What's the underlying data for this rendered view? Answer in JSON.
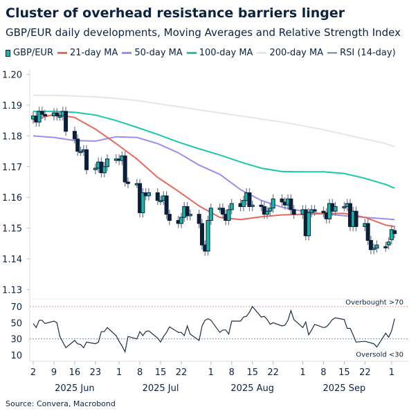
{
  "title": "Cluster of overhead resistance barriers linger",
  "subtitle": "GBP/EUR daily developments, Moving Averages and Relative Strength Index",
  "source": "Source: Convera, Macrobond",
  "colors": {
    "up": "#17b8a6",
    "down": "#0b1f3a",
    "ma21": "#e8685a",
    "ma50": "#9c8cf0",
    "ma100": "#19c9a9",
    "ma200": "#e6e6e6",
    "rsi": "#1e2a40",
    "overbought": "#f09090",
    "oversold": "#19c9a9"
  },
  "legend": [
    {
      "label": "GBP/EUR",
      "key": "candle",
      "icon": "candlestick-icon"
    },
    {
      "label": "21-day MA",
      "key": "ma21"
    },
    {
      "label": "50-day MA",
      "key": "ma50"
    },
    {
      "label": "100-day MA",
      "key": "ma100"
    },
    {
      "label": "200-day MA",
      "key": "ma200"
    },
    {
      "label": "RSI (14-day)",
      "key": "rsi"
    }
  ],
  "chart_data": [
    {
      "type": "candlestick",
      "ylim": [
        1.13,
        1.2
      ],
      "yticks": [
        "1.20",
        "1.19",
        "1.18",
        "1.17",
        "1.16",
        "1.15",
        "1.14",
        "1.13"
      ],
      "start": "2025-06-02",
      "ohlc_columns": [
        "open",
        "high",
        "low",
        "close"
      ],
      "closes": [
        1.1865,
        1.1845,
        1.188,
        1.187,
        1.1865,
        1.1875,
        1.1865,
        1.1865,
        1.188,
        1.1815,
        1.179,
        1.175,
        1.175,
        1.1755,
        1.169,
        1.1695,
        1.1715,
        1.168,
        1.17,
        1.1725,
        1.1725,
        1.172,
        1.1735,
        1.165,
        1.1645,
        1.1645,
        1.155,
        1.1615,
        1.1605,
        1.1615,
        1.159,
        1.159,
        1.1605,
        1.1545,
        1.1525,
        1.1515,
        1.1535,
        1.157,
        1.154,
        1.1545,
        1.1515,
        1.1445,
        1.1425,
        1.1525,
        1.1565,
        1.1565,
        1.1545,
        1.1525,
        1.156,
        1.158,
        1.157,
        1.159,
        1.1615,
        1.157,
        1.1575,
        1.157,
        1.1545,
        1.1555,
        1.1565,
        1.1595,
        1.1585,
        1.1575,
        1.1595,
        1.156,
        1.1545,
        1.156,
        1.1475,
        1.155,
        1.156,
        1.1555,
        1.155,
        1.153,
        1.158,
        1.1555,
        1.157,
        1.157,
        1.158,
        1.1505,
        1.1555,
        1.1505,
        1.1515,
        1.146,
        1.143,
        1.1435,
        1.1445,
        1.1438,
        1.1455,
        1.1495,
        1.1482
      ],
      "opens": [
        1.1855,
        1.1865,
        1.1845,
        1.188,
        1.187,
        1.1865,
        1.1875,
        1.1865,
        1.1865,
        1.188,
        1.1815,
        1.179,
        1.175,
        1.175,
        1.1755,
        1.169,
        1.1695,
        1.1715,
        1.168,
        1.17,
        1.1725,
        1.1725,
        1.172,
        1.1735,
        1.165,
        1.1645,
        1.1645,
        1.155,
        1.1615,
        1.1605,
        1.1615,
        1.159,
        1.159,
        1.1605,
        1.1545,
        1.1525,
        1.1515,
        1.1535,
        1.157,
        1.154,
        1.1545,
        1.1515,
        1.1445,
        1.1425,
        1.1525,
        1.1565,
        1.1565,
        1.1545,
        1.1525,
        1.156,
        1.158,
        1.157,
        1.159,
        1.1615,
        1.157,
        1.1575,
        1.157,
        1.1545,
        1.1555,
        1.1565,
        1.1595,
        1.1585,
        1.1575,
        1.1595,
        1.156,
        1.1545,
        1.156,
        1.1475,
        1.155,
        1.156,
        1.1555,
        1.155,
        1.153,
        1.158,
        1.1555,
        1.157,
        1.157,
        1.158,
        1.1505,
        1.1555,
        1.1505,
        1.1515,
        1.146,
        1.143,
        1.1435,
        1.144,
        1.1445,
        1.1462,
        1.1492
      ],
      "wick": 0.0015,
      "series": [
        {
          "name": "21-day MA",
          "values": [
            1.1852,
            1.187,
            1.186,
            1.1822,
            1.1775,
            1.1725,
            1.1665,
            1.162,
            1.1572,
            1.1535,
            1.1528,
            1.1537,
            1.1543,
            1.1545,
            1.1547,
            1.1548,
            1.1535,
            1.151,
            1.1505
          ]
        },
        {
          "name": "50-day MA",
          "values": [
            1.18,
            1.1795,
            1.1785,
            1.1783,
            1.1797,
            1.1795,
            1.1775,
            1.1745,
            1.1705,
            1.1675,
            1.1625,
            1.159,
            1.1568,
            1.1555,
            1.1547,
            1.154,
            1.1535,
            1.153,
            1.1528
          ]
        },
        {
          "name": "100-day MA",
          "values": [
            1.188,
            1.188,
            1.1877,
            1.1868,
            1.185,
            1.1828,
            1.1805,
            1.178,
            1.1758,
            1.1738,
            1.1715,
            1.1695,
            1.1684,
            1.1683,
            1.1683,
            1.1678,
            1.1662,
            1.1642,
            1.163
          ]
        },
        {
          "name": "200-day MA",
          "values": [
            1.1932,
            1.1932,
            1.193,
            1.1927,
            1.1922,
            1.1915,
            1.1905,
            1.1895,
            1.1885,
            1.1875,
            1.1865,
            1.1855,
            1.1845,
            1.1833,
            1.182,
            1.1805,
            1.179,
            1.1775,
            1.1765
          ]
        }
      ],
      "ma_dates": [
        "2025-06-02",
        "2025-06-09",
        "2025-06-16",
        "2025-06-23",
        "2025-06-30",
        "2025-07-07",
        "2025-07-14",
        "2025-07-21",
        "2025-07-28",
        "2025-08-04",
        "2025-08-11",
        "2025-08-18",
        "2025-08-25",
        "2025-09-01",
        "2025-09-08",
        "2025-09-15",
        "2025-09-22",
        "2025-09-29",
        "2025-10-02"
      ]
    },
    {
      "type": "line",
      "name": "RSI (14-day)",
      "ylim": [
        0,
        80
      ],
      "yticks": [
        "70",
        "50",
        "30",
        "10"
      ],
      "values": [
        49,
        44,
        53,
        53,
        49,
        52,
        50,
        33,
        26,
        19,
        28,
        24,
        23,
        19,
        26,
        24,
        26,
        39,
        39,
        44,
        34,
        27,
        21,
        14,
        33,
        30,
        39,
        34,
        39,
        40,
        31,
        26,
        33,
        38,
        45,
        38,
        38,
        34,
        46,
        36,
        28,
        46,
        53,
        55,
        53,
        38,
        41,
        41,
        36,
        52,
        52,
        57,
        58,
        63,
        70,
        57,
        58,
        54,
        48,
        50,
        46,
        47,
        53,
        65,
        54,
        44,
        51,
        35,
        41,
        48,
        44,
        45,
        49,
        54,
        56,
        54,
        43,
        43,
        35,
        26,
        27,
        26,
        25,
        24,
        20,
        37,
        32,
        40,
        55
      ],
      "overbought": {
        "level": 70,
        "label": "Overbought >70"
      },
      "oversold": {
        "level": 30,
        "label": "Oversold <30"
      }
    }
  ],
  "xaxis": {
    "ticks": [
      {
        "date": "2025-06-02",
        "label": "2"
      },
      {
        "date": "2025-06-09",
        "label": "9"
      },
      {
        "date": "2025-06-16",
        "label": "16"
      },
      {
        "date": "2025-06-23",
        "label": "23"
      },
      {
        "date": "2025-07-01",
        "label": "1"
      },
      {
        "date": "2025-07-08",
        "label": "8"
      },
      {
        "date": "2025-07-15",
        "label": "15"
      },
      {
        "date": "2025-07-22",
        "label": "22"
      },
      {
        "date": "2025-08-01",
        "label": "1"
      },
      {
        "date": "2025-08-08",
        "label": "8"
      },
      {
        "date": "2025-08-15",
        "label": "15"
      },
      {
        "date": "2025-08-22",
        "label": "22"
      },
      {
        "date": "2025-09-01",
        "label": "1"
      },
      {
        "date": "2025-09-08",
        "label": "8"
      },
      {
        "date": "2025-09-15",
        "label": "15"
      },
      {
        "date": "2025-09-22",
        "label": "22"
      },
      {
        "date": "2025-10-01",
        "label": "1"
      }
    ],
    "months": [
      {
        "date": "2025-06-16",
        "label": "2025 Jun"
      },
      {
        "date": "2025-07-15",
        "label": "2025 Jul"
      },
      {
        "date": "2025-08-15",
        "label": "2025 Aug"
      },
      {
        "date": "2025-09-15",
        "label": "2025 Sep"
      }
    ]
  }
}
